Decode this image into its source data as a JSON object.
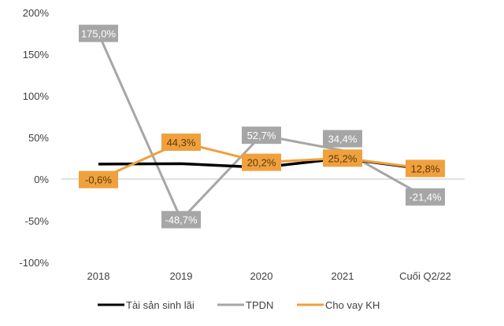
{
  "chart_data": {
    "type": "line",
    "title": "",
    "xlabel": "",
    "ylabel": "",
    "categories": [
      "2018",
      "2019",
      "2020",
      "2021",
      "Cuối Q2/22"
    ],
    "yticks": [
      "200%",
      "150%",
      "100%",
      "50%",
      "0%",
      "-50%",
      "-100%"
    ],
    "ytick_values": [
      200,
      150,
      100,
      50,
      0,
      -50,
      -100
    ],
    "ylim": [
      -100,
      200
    ],
    "grid": false,
    "legend_position": "bottom",
    "series": [
      {
        "name": "Tài sản sinh lãi",
        "color": "#000000",
        "values": [
          18,
          18.5,
          14,
          25,
          12
        ],
        "labels": []
      },
      {
        "name": "TPDN",
        "color": "#a6a6a6",
        "values": [
          175.0,
          -48.7,
          52.7,
          34.4,
          -21.4
        ],
        "labels": [
          "175,0%",
          "-48,7%",
          "52,7%",
          "34,4%",
          "-21,4%"
        ]
      },
      {
        "name": "Cho vay KH",
        "color": "#f0a03c",
        "values": [
          -0.6,
          44.3,
          20.2,
          25.2,
          12.8
        ],
        "labels": [
          "-0,6%",
          "44,3%",
          "20,2%",
          "25,2%",
          "12,8%"
        ]
      }
    ]
  }
}
